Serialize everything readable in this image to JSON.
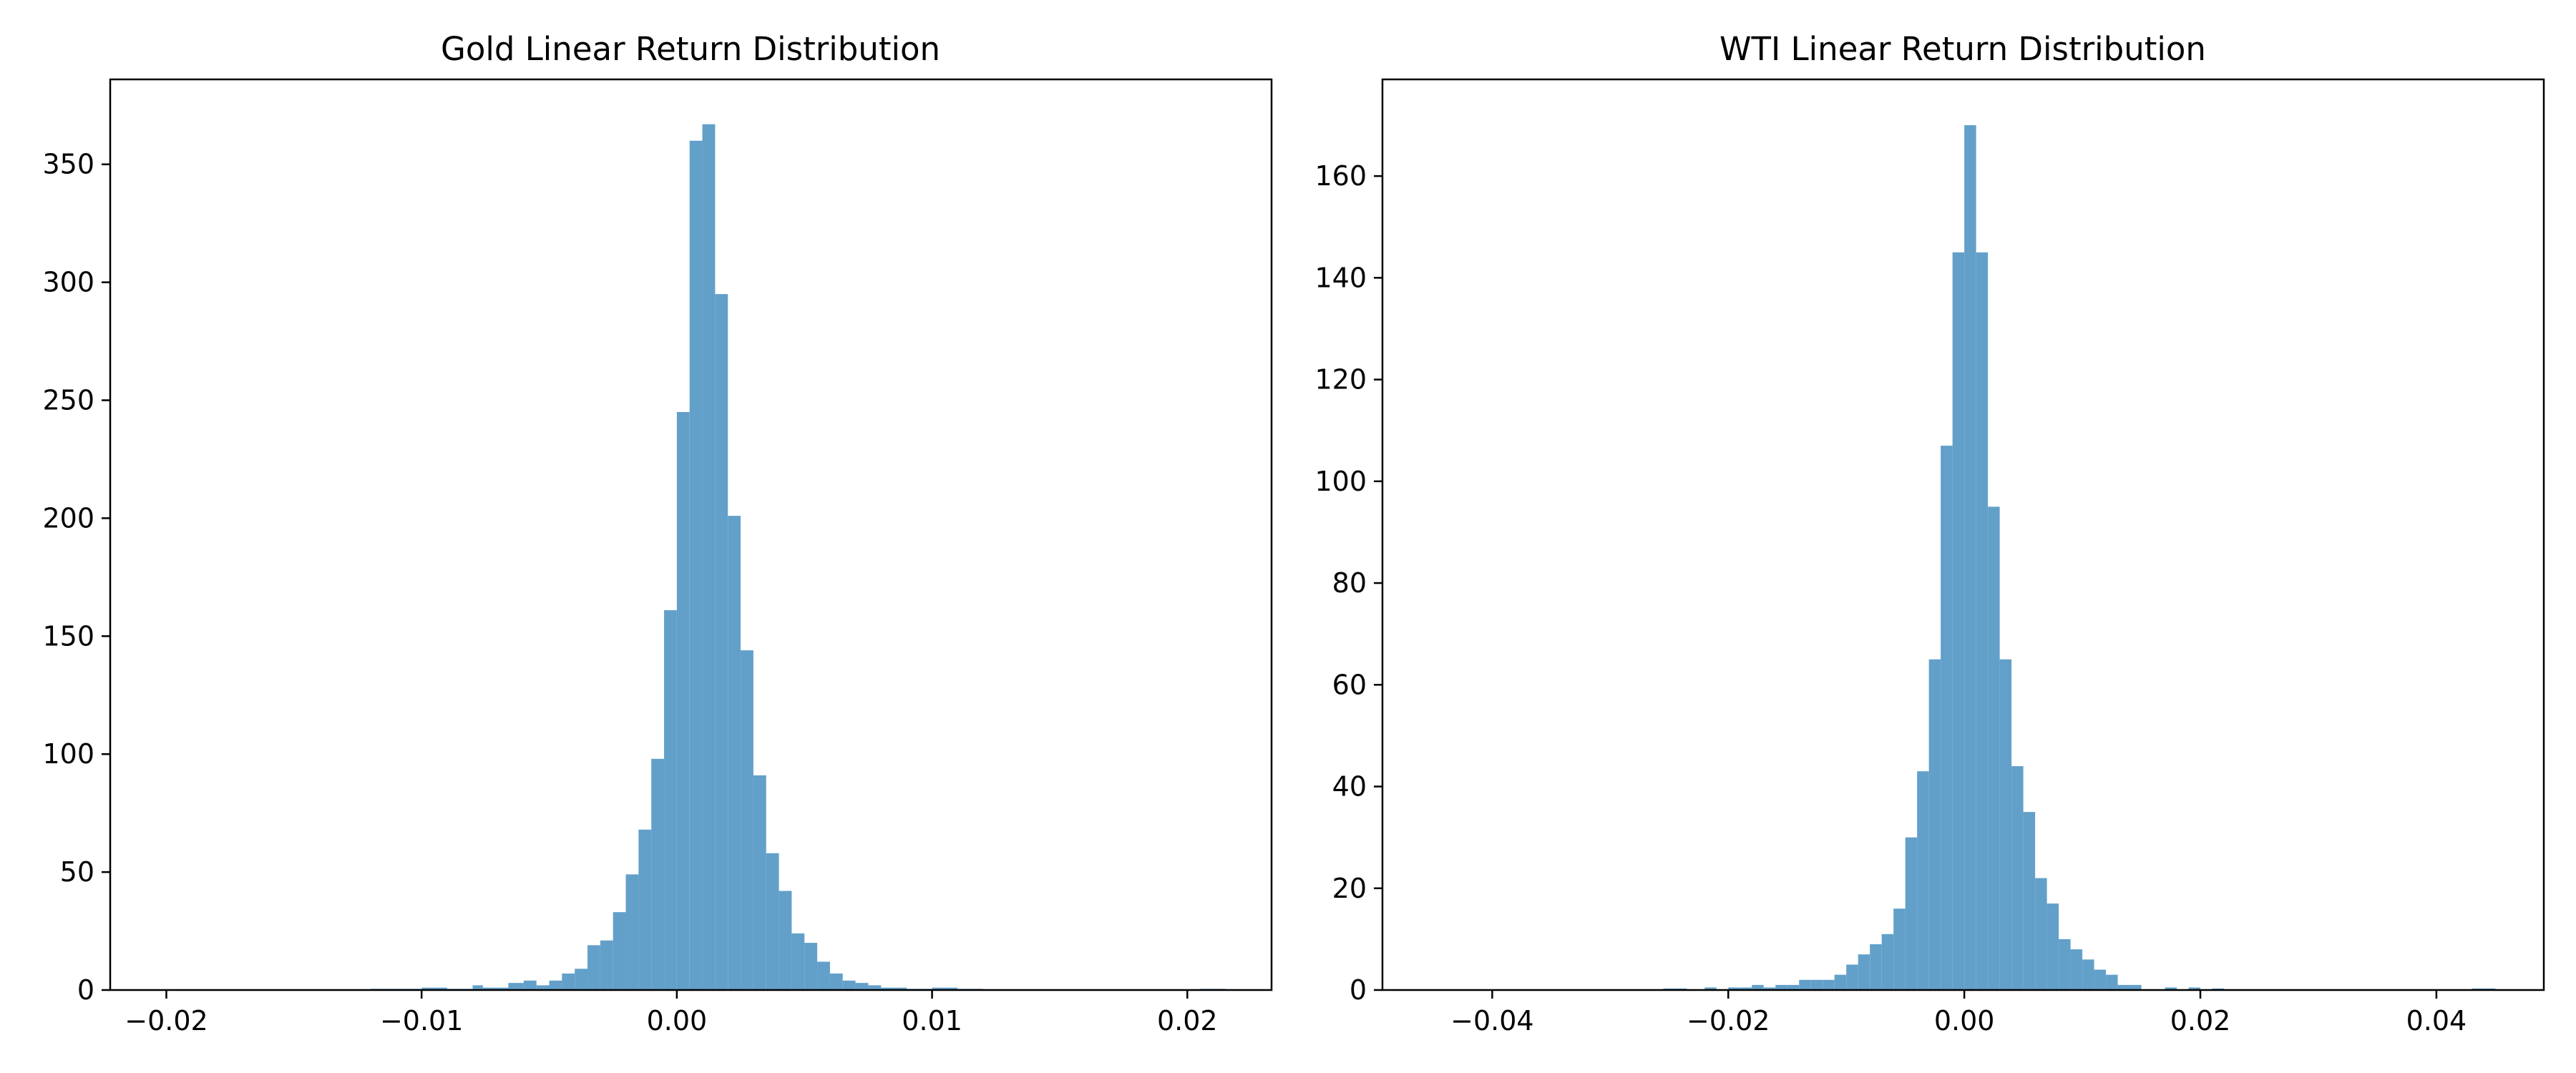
{
  "chart_data": [
    {
      "type": "bar",
      "title": "Gold Linear Return Distribution",
      "xlabel": "",
      "ylabel": "",
      "xlim": [
        -0.0222,
        0.0233
      ],
      "ylim": [
        0,
        386
      ],
      "xticks": [
        -0.02,
        -0.01,
        0.0,
        0.01,
        0.02
      ],
      "xtick_labels": [
        "−0.02",
        "−0.01",
        "0.00",
        "0.01",
        "0.02"
      ],
      "yticks": [
        0,
        50,
        100,
        150,
        200,
        250,
        300,
        350
      ],
      "ytick_labels": [
        "0",
        "50",
        "100",
        "150",
        "200",
        "250",
        "300",
        "350"
      ],
      "grid": false,
      "legend": "none",
      "bar_color": "#62a0ca",
      "bins": [
        {
          "x0": -0.012,
          "x1": -0.01,
          "count": 0.5
        },
        {
          "x0": -0.01,
          "x1": -0.009,
          "count": 1
        },
        {
          "x0": -0.009,
          "x1": -0.008,
          "count": 0.5
        },
        {
          "x0": -0.008,
          "x1": -0.0076,
          "count": 2
        },
        {
          "x0": -0.0076,
          "x1": -0.0066,
          "count": 1
        },
        {
          "x0": -0.0066,
          "x1": -0.006,
          "count": 3
        },
        {
          "x0": -0.006,
          "x1": -0.0055,
          "count": 4
        },
        {
          "x0": -0.0055,
          "x1": -0.005,
          "count": 2
        },
        {
          "x0": -0.005,
          "x1": -0.0045,
          "count": 4
        },
        {
          "x0": -0.0045,
          "x1": -0.004,
          "count": 7
        },
        {
          "x0": -0.004,
          "x1": -0.0035,
          "count": 9
        },
        {
          "x0": -0.0035,
          "x1": -0.003,
          "count": 19
        },
        {
          "x0": -0.003,
          "x1": -0.0025,
          "count": 21
        },
        {
          "x0": -0.0025,
          "x1": -0.002,
          "count": 33
        },
        {
          "x0": -0.002,
          "x1": -0.0015,
          "count": 49
        },
        {
          "x0": -0.0015,
          "x1": -0.001,
          "count": 68
        },
        {
          "x0": -0.001,
          "x1": -0.0005,
          "count": 98
        },
        {
          "x0": -0.0005,
          "x1": 0.0,
          "count": 161
        },
        {
          "x0": 0.0,
          "x1": 0.0005,
          "count": 245
        },
        {
          "x0": 0.0005,
          "x1": 0.001,
          "count": 360
        },
        {
          "x0": 0.001,
          "x1": 0.0015,
          "count": 367
        },
        {
          "x0": 0.0015,
          "x1": 0.002,
          "count": 295
        },
        {
          "x0": 0.002,
          "x1": 0.0025,
          "count": 201
        },
        {
          "x0": 0.0025,
          "x1": 0.003,
          "count": 144
        },
        {
          "x0": 0.003,
          "x1": 0.0035,
          "count": 91
        },
        {
          "x0": 0.0035,
          "x1": 0.004,
          "count": 58
        },
        {
          "x0": 0.004,
          "x1": 0.0045,
          "count": 42
        },
        {
          "x0": 0.0045,
          "x1": 0.005,
          "count": 24
        },
        {
          "x0": 0.005,
          "x1": 0.0055,
          "count": 20
        },
        {
          "x0": 0.0055,
          "x1": 0.006,
          "count": 12
        },
        {
          "x0": 0.006,
          "x1": 0.0065,
          "count": 7
        },
        {
          "x0": 0.0065,
          "x1": 0.007,
          "count": 4
        },
        {
          "x0": 0.007,
          "x1": 0.0075,
          "count": 3
        },
        {
          "x0": 0.0075,
          "x1": 0.008,
          "count": 2
        },
        {
          "x0": 0.008,
          "x1": 0.009,
          "count": 1
        },
        {
          "x0": 0.009,
          "x1": 0.01,
          "count": 0.5
        },
        {
          "x0": 0.01,
          "x1": 0.011,
          "count": 1
        },
        {
          "x0": 0.011,
          "x1": 0.012,
          "count": 0.5
        },
        {
          "x0": 0.0205,
          "x1": 0.0215,
          "count": 0.5
        }
      ]
    },
    {
      "type": "bar",
      "title": "WTI Linear Return Distribution",
      "xlabel": "",
      "ylabel": "",
      "xlim": [
        -0.0493,
        0.0491
      ],
      "ylim": [
        0,
        179
      ],
      "xticks": [
        -0.04,
        -0.02,
        0.0,
        0.02,
        0.04
      ],
      "xtick_labels": [
        "−0.04",
        "−0.02",
        "0.00",
        "0.02",
        "0.04"
      ],
      "yticks": [
        0,
        20,
        40,
        60,
        80,
        100,
        120,
        140,
        160
      ],
      "ytick_labels": [
        "0",
        "20",
        "40",
        "60",
        "80",
        "100",
        "120",
        "140",
        "160"
      ],
      "grid": false,
      "legend": "none",
      "bar_color": "#62a0ca",
      "bins": [
        {
          "x0": -0.0255,
          "x1": -0.0235,
          "count": 0.3
        },
        {
          "x0": -0.022,
          "x1": -0.021,
          "count": 0.5
        },
        {
          "x0": -0.02,
          "x1": -0.019,
          "count": 0.5
        },
        {
          "x0": -0.019,
          "x1": -0.018,
          "count": 0.5
        },
        {
          "x0": -0.018,
          "x1": -0.017,
          "count": 1
        },
        {
          "x0": -0.017,
          "x1": -0.016,
          "count": 0.5
        },
        {
          "x0": -0.016,
          "x1": -0.015,
          "count": 1
        },
        {
          "x0": -0.015,
          "x1": -0.014,
          "count": 1
        },
        {
          "x0": -0.014,
          "x1": -0.013,
          "count": 2
        },
        {
          "x0": -0.013,
          "x1": -0.012,
          "count": 2
        },
        {
          "x0": -0.012,
          "x1": -0.011,
          "count": 2
        },
        {
          "x0": -0.011,
          "x1": -0.01,
          "count": 3
        },
        {
          "x0": -0.01,
          "x1": -0.009,
          "count": 5
        },
        {
          "x0": -0.009,
          "x1": -0.008,
          "count": 7
        },
        {
          "x0": -0.008,
          "x1": -0.007,
          "count": 9
        },
        {
          "x0": -0.007,
          "x1": -0.006,
          "count": 11
        },
        {
          "x0": -0.006,
          "x1": -0.005,
          "count": 16
        },
        {
          "x0": -0.005,
          "x1": -0.004,
          "count": 30
        },
        {
          "x0": -0.004,
          "x1": -0.003,
          "count": 43
        },
        {
          "x0": -0.003,
          "x1": -0.002,
          "count": 65
        },
        {
          "x0": -0.002,
          "x1": -0.001,
          "count": 107
        },
        {
          "x0": -0.001,
          "x1": 0.0,
          "count": 145
        },
        {
          "x0": 0.0,
          "x1": 0.001,
          "count": 170
        },
        {
          "x0": 0.001,
          "x1": 0.002,
          "count": 145
        },
        {
          "x0": 0.002,
          "x1": 0.003,
          "count": 95
        },
        {
          "x0": 0.003,
          "x1": 0.004,
          "count": 65
        },
        {
          "x0": 0.004,
          "x1": 0.005,
          "count": 44
        },
        {
          "x0": 0.005,
          "x1": 0.006,
          "count": 35
        },
        {
          "x0": 0.006,
          "x1": 0.007,
          "count": 22
        },
        {
          "x0": 0.007,
          "x1": 0.008,
          "count": 17
        },
        {
          "x0": 0.008,
          "x1": 0.009,
          "count": 10
        },
        {
          "x0": 0.009,
          "x1": 0.01,
          "count": 8
        },
        {
          "x0": 0.01,
          "x1": 0.011,
          "count": 6
        },
        {
          "x0": 0.011,
          "x1": 0.012,
          "count": 4
        },
        {
          "x0": 0.012,
          "x1": 0.013,
          "count": 3
        },
        {
          "x0": 0.013,
          "x1": 0.014,
          "count": 1
        },
        {
          "x0": 0.014,
          "x1": 0.015,
          "count": 1
        },
        {
          "x0": 0.017,
          "x1": 0.018,
          "count": 0.5
        },
        {
          "x0": 0.019,
          "x1": 0.02,
          "count": 0.5
        },
        {
          "x0": 0.021,
          "x1": 0.022,
          "count": 0.3
        },
        {
          "x0": 0.043,
          "x1": 0.045,
          "count": 0.3
        }
      ]
    }
  ]
}
